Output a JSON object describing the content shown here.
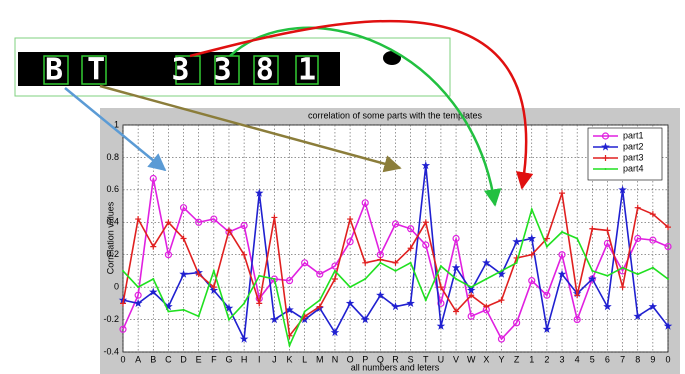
{
  "plate": {
    "text": "BT 3381"
  },
  "chart_data": {
    "type": "line",
    "title": "correlation of some parts with the templates",
    "xlabel": "all numbers and leters",
    "ylabel": "Correlation values",
    "categories": [
      "0",
      "A",
      "B",
      "C",
      "D",
      "E",
      "F",
      "G",
      "H",
      "I",
      "J",
      "K",
      "L",
      "M",
      "N",
      "O",
      "P",
      "Q",
      "R",
      "S",
      "T",
      "U",
      "V",
      "W",
      "X",
      "Y",
      "Z",
      "1",
      "2",
      "3",
      "4",
      "5",
      "6",
      "7",
      "8",
      "9",
      "0"
    ],
    "ylim": [
      -0.4,
      1
    ],
    "yticks": [
      -0.4,
      -0.2,
      0,
      0.2,
      0.4,
      0.6,
      0.8,
      1
    ],
    "grid": true,
    "legend": "upper right",
    "series": [
      {
        "name": "part1",
        "color": "#e020e0",
        "marker": "circle",
        "values": [
          -0.26,
          -0.05,
          0.67,
          0.2,
          0.49,
          0.4,
          0.42,
          0.34,
          0.38,
          -0.07,
          0.05,
          0.04,
          0.15,
          0.08,
          0.13,
          0.28,
          0.52,
          0.2,
          0.39,
          0.36,
          0.26,
          -0.1,
          0.3,
          -0.18,
          -0.14,
          -0.32,
          -0.22,
          0.04,
          -0.05,
          0.2,
          -0.2,
          0.05,
          0.27,
          0.1,
          0.3,
          0.29,
          0.25
        ]
      },
      {
        "name": "part2",
        "color": "#2020d0",
        "marker": "star",
        "values": [
          -0.08,
          -0.1,
          -0.03,
          -0.12,
          0.08,
          0.09,
          -0.02,
          -0.13,
          -0.32,
          0.58,
          -0.2,
          -0.14,
          -0.2,
          -0.13,
          -0.28,
          -0.1,
          -0.2,
          -0.05,
          -0.12,
          -0.1,
          0.75,
          -0.24,
          0.12,
          -0.02,
          0.15,
          0.08,
          0.28,
          0.3,
          -0.26,
          0.08,
          -0.04,
          0.05,
          -0.12,
          0.6,
          -0.18,
          -0.12,
          -0.24
        ]
      },
      {
        "name": "part3",
        "color": "#e02020",
        "marker": "plus",
        "values": [
          -0.1,
          0.42,
          0.25,
          0.4,
          0.3,
          0.08,
          0.0,
          0.35,
          0.2,
          -0.1,
          0.43,
          -0.3,
          -0.18,
          -0.12,
          0.05,
          0.42,
          0.15,
          0.17,
          0.15,
          0.24,
          0.4,
          0.0,
          -0.15,
          -0.05,
          -0.12,
          -0.08,
          0.18,
          0.2,
          0.3,
          0.58,
          -0.05,
          0.36,
          0.35,
          0.0,
          0.49,
          0.45,
          0.37
        ]
      },
      {
        "name": "part4",
        "color": "#20e020",
        "marker": "none",
        "values": [
          0.1,
          0.0,
          0.05,
          -0.15,
          -0.14,
          -0.18,
          0.1,
          -0.2,
          -0.1,
          0.07,
          0.05,
          -0.36,
          -0.15,
          -0.08,
          0.1,
          0.0,
          0.05,
          0.15,
          0.1,
          0.15,
          -0.08,
          0.13,
          0.05,
          0.0,
          0.05,
          0.1,
          0.15,
          0.48,
          0.25,
          0.34,
          0.3,
          0.1,
          0.07,
          0.12,
          0.08,
          0.12,
          0.05
        ]
      }
    ]
  }
}
